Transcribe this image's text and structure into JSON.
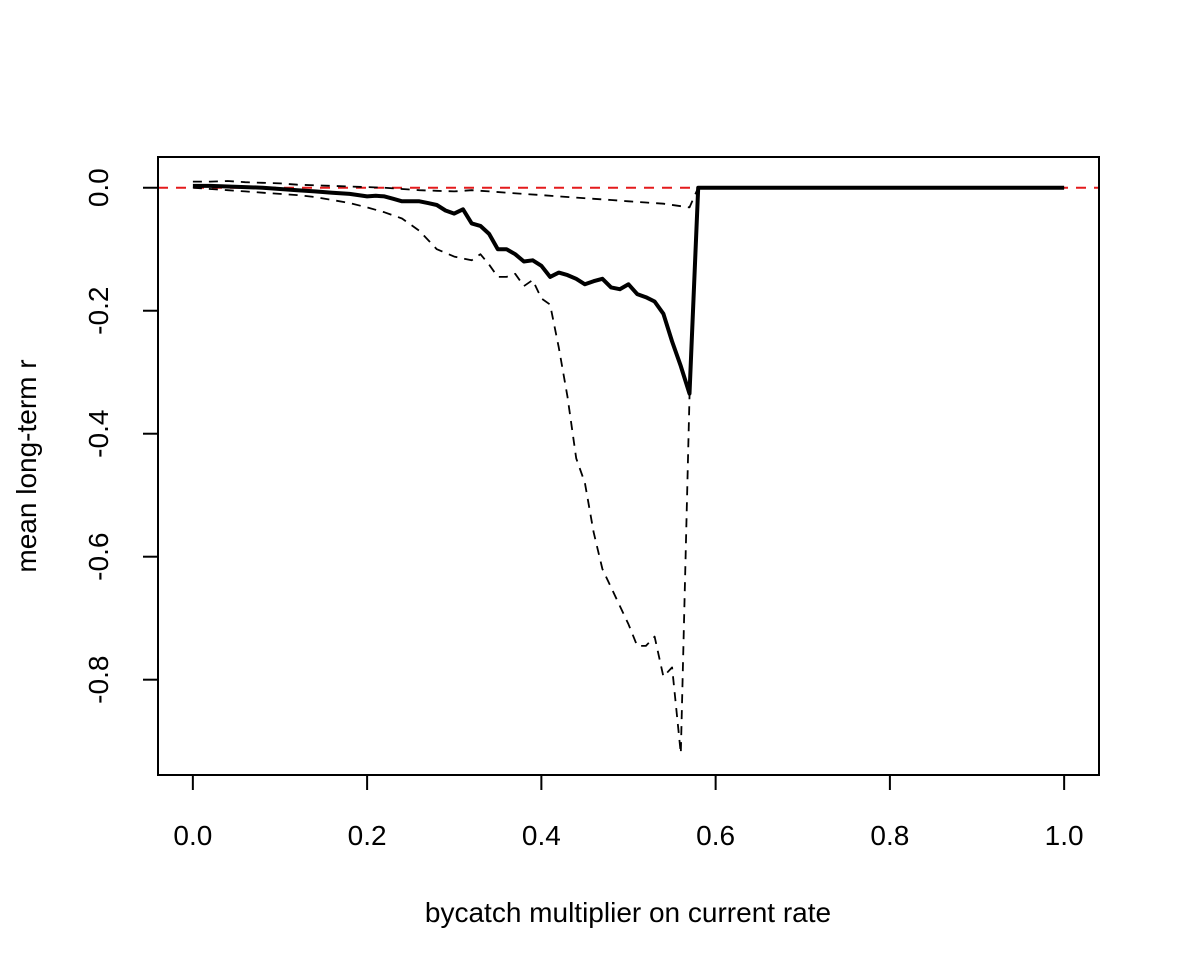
{
  "chart_data": {
    "type": "line",
    "title": "",
    "xlabel": "bycatch multiplier on current rate",
    "ylabel": "mean long-term r",
    "xlim": [
      -0.04,
      1.04
    ],
    "ylim": [
      -0.955,
      0.05
    ],
    "x_ticks": [
      0.0,
      0.2,
      0.4,
      0.6,
      0.8,
      1.0
    ],
    "x_tick_labels": [
      "0.0",
      "0.2",
      "0.4",
      "0.6",
      "0.8",
      "1.0"
    ],
    "y_ticks": [
      0.0,
      -0.2,
      -0.4,
      -0.6,
      -0.8
    ],
    "y_tick_labels": [
      "0.0",
      "-0.2",
      "-0.4",
      "-0.6",
      "-0.8"
    ],
    "grid": false,
    "legend": "none",
    "reference_line": {
      "y": 0,
      "color": "#e41a1c",
      "style": "dashed"
    },
    "series": [
      {
        "style": "solid",
        "color": "#000000",
        "x": [
          0.0,
          0.02,
          0.04,
          0.06,
          0.08,
          0.1,
          0.12,
          0.14,
          0.16,
          0.18,
          0.2,
          0.21,
          0.22,
          0.23,
          0.24,
          0.25,
          0.26,
          0.27,
          0.28,
          0.29,
          0.3,
          0.31,
          0.32,
          0.33,
          0.34,
          0.35,
          0.36,
          0.37,
          0.38,
          0.39,
          0.4,
          0.41,
          0.42,
          0.43,
          0.44,
          0.45,
          0.46,
          0.47,
          0.48,
          0.49,
          0.5,
          0.51,
          0.52,
          0.53,
          0.54,
          0.55,
          0.56,
          0.57,
          0.58,
          0.6,
          0.8,
          1.0
        ],
        "y": [
          0.003,
          0.003,
          0.002,
          0.001,
          0.0,
          -0.002,
          -0.004,
          -0.006,
          -0.008,
          -0.01,
          -0.014,
          -0.013,
          -0.014,
          -0.018,
          -0.022,
          -0.022,
          -0.022,
          -0.025,
          -0.028,
          -0.037,
          -0.042,
          -0.035,
          -0.058,
          -0.062,
          -0.075,
          -0.1,
          -0.1,
          -0.108,
          -0.12,
          -0.118,
          -0.127,
          -0.145,
          -0.138,
          -0.142,
          -0.148,
          -0.157,
          -0.152,
          -0.148,
          -0.162,
          -0.165,
          -0.157,
          -0.173,
          -0.178,
          -0.185,
          -0.205,
          -0.25,
          -0.29,
          -0.335,
          0.0,
          0.0,
          0.0,
          0.0
        ]
      },
      {
        "style": "dashed",
        "color": "#000000",
        "x": [
          0.0,
          0.02,
          0.04,
          0.06,
          0.08,
          0.1,
          0.12,
          0.14,
          0.16,
          0.18,
          0.2,
          0.22,
          0.24,
          0.26,
          0.28,
          0.3,
          0.32,
          0.34,
          0.36,
          0.38,
          0.4,
          0.42,
          0.44,
          0.46,
          0.48,
          0.5,
          0.52,
          0.54,
          0.56,
          0.57,
          0.58,
          0.6,
          0.8,
          1.0
        ],
        "y": [
          0.01,
          0.01,
          0.011,
          0.009,
          0.008,
          0.007,
          0.005,
          0.004,
          0.003,
          0.002,
          0.001,
          0.0,
          -0.002,
          -0.004,
          -0.005,
          -0.006,
          -0.004,
          -0.006,
          -0.008,
          -0.01,
          -0.012,
          -0.014,
          -0.016,
          -0.018,
          -0.02,
          -0.022,
          -0.024,
          -0.026,
          -0.03,
          -0.032,
          0.0,
          0.0,
          0.0,
          0.0
        ]
      },
      {
        "style": "dashed",
        "color": "#000000",
        "x": [
          0.0,
          0.02,
          0.04,
          0.06,
          0.08,
          0.1,
          0.12,
          0.14,
          0.16,
          0.18,
          0.2,
          0.22,
          0.24,
          0.26,
          0.28,
          0.3,
          0.32,
          0.33,
          0.34,
          0.35,
          0.36,
          0.37,
          0.38,
          0.39,
          0.4,
          0.41,
          0.42,
          0.43,
          0.44,
          0.45,
          0.46,
          0.47,
          0.48,
          0.49,
          0.5,
          0.51,
          0.52,
          0.53,
          0.54,
          0.55,
          0.56,
          0.57,
          0.58,
          0.6,
          0.8,
          1.0
        ],
        "y": [
          0.0,
          -0.002,
          -0.004,
          -0.006,
          -0.008,
          -0.01,
          -0.012,
          -0.015,
          -0.02,
          -0.025,
          -0.032,
          -0.04,
          -0.05,
          -0.07,
          -0.1,
          -0.112,
          -0.118,
          -0.108,
          -0.125,
          -0.145,
          -0.145,
          -0.14,
          -0.16,
          -0.15,
          -0.18,
          -0.19,
          -0.26,
          -0.34,
          -0.44,
          -0.48,
          -0.56,
          -0.62,
          -0.65,
          -0.68,
          -0.71,
          -0.745,
          -0.745,
          -0.73,
          -0.795,
          -0.78,
          -0.92,
          -0.34,
          0.0,
          0.0,
          0.0,
          0.0
        ]
      }
    ]
  }
}
